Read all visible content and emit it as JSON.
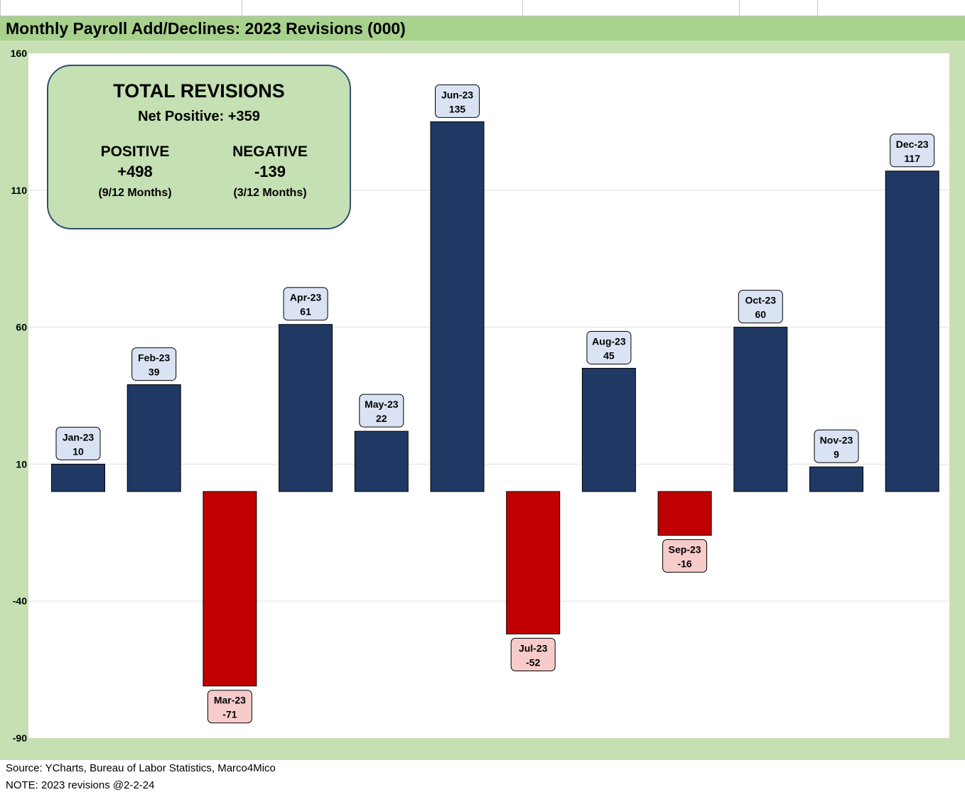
{
  "header": {
    "title": "Monthly Payroll Add/Declines: 2023 Revisions (000)"
  },
  "summary": {
    "title": "TOTAL REVISIONS",
    "net": "Net Positive: +359",
    "positive": {
      "label": "POSITIVE",
      "value": "+498",
      "months": "(9/12 Months)"
    },
    "negative": {
      "label": "NEGATIVE",
      "value": "-139",
      "months": "(3/12 Months)"
    }
  },
  "colors": {
    "positive_bar": "#203864",
    "negative_bar": "#c00000",
    "positive_label_bg": "#dae3f3",
    "negative_label_bg": "#f8cbcb",
    "chart_bg": "#c6e0b4",
    "title_bg": "#a9d18e"
  },
  "chart_data": {
    "type": "bar",
    "title": "Monthly Payroll Add/Declines: 2023 Revisions (000)",
    "categories": [
      "Jan-23",
      "Feb-23",
      "Mar-23",
      "Apr-23",
      "May-23",
      "Jun-23",
      "Jul-23",
      "Aug-23",
      "Sep-23",
      "Oct-23",
      "Nov-23",
      "Dec-23"
    ],
    "values": [
      10,
      39,
      -71,
      61,
      22,
      135,
      -52,
      45,
      -16,
      60,
      9,
      117
    ],
    "ylim": [
      -90,
      160
    ],
    "yticks": [
      "160",
      "110",
      "60",
      "10",
      "-40",
      "-90"
    ],
    "grid": true,
    "xlabel": "",
    "ylabel": ""
  },
  "footer": {
    "source": "Source: YCharts, Bureau of Labor Statistics, Marco4Mico",
    "note": "NOTE: 2023 revisions @2-2-24"
  }
}
